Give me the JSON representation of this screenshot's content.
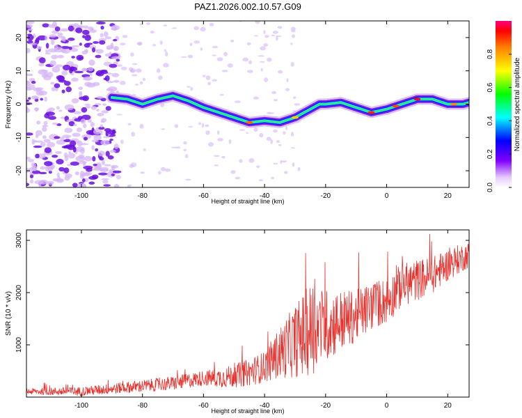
{
  "title": "PAZ1.2026.002.10.57.G09",
  "colors": {
    "snr_line": "#e8302c",
    "blob_dark": "#6a0fe0",
    "blob_light": "#d6b6f6",
    "frame": "#000000"
  },
  "chart_data": [
    {
      "type": "heatmap",
      "name": "spectrogram",
      "xlabel": "Height of straight line (km)",
      "ylabel": "Frequency (Hz)",
      "xlim": [
        -118,
        27
      ],
      "ylim": [
        -25,
        25
      ],
      "x_ticks": [
        -100,
        -80,
        -60,
        -40,
        -20,
        0,
        20
      ],
      "y_ticks": [
        -20,
        -10,
        0,
        10,
        20
      ],
      "ridge": {
        "x": [
          -90,
          -85,
          -80,
          -75,
          -70,
          -65,
          -60,
          -55,
          -50,
          -45,
          -40,
          -35,
          -30,
          -27,
          -24,
          -22,
          -20,
          -15,
          -10,
          -5,
          0,
          5,
          10,
          15,
          20,
          25,
          27
        ],
        "y": [
          2,
          1.5,
          0,
          1.5,
          2.5,
          1,
          -1,
          -2.5,
          -4,
          -5.5,
          -5,
          -5.5,
          -4,
          -2.5,
          -1,
          0,
          0,
          0.5,
          -1,
          -2.5,
          -1.5,
          0,
          1.5,
          1.5,
          0,
          0,
          0.5
        ]
      },
      "colorbar": {
        "label": "Normalized spectral amplitude",
        "range": [
          0,
          1
        ],
        "ticks": [
          "0.0",
          "0.2",
          "0.4",
          "0.6",
          "0.8"
        ],
        "tick_values": [
          0,
          0.2,
          0.4,
          0.6,
          0.8
        ]
      }
    },
    {
      "type": "line",
      "name": "snr",
      "xlabel": "Height of straight line (km)",
      "ylabel": "SNR (10 * v/v)",
      "xlim": [
        -118,
        27
      ],
      "ylim": [
        0,
        3200
      ],
      "x_ticks": [
        -100,
        -80,
        -60,
        -40,
        -20,
        0,
        20
      ],
      "y_ticks": [
        1000,
        2000,
        3000
      ],
      "trend": {
        "x": [
          -118,
          -100,
          -90,
          -80,
          -70,
          -60,
          -55,
          -50,
          -45,
          -40,
          -35,
          -30,
          -25,
          -20,
          -15,
          -10,
          -5,
          0,
          5,
          10,
          15,
          20,
          25,
          27
        ],
        "y": [
          100,
          100,
          150,
          200,
          250,
          350,
          350,
          380,
          450,
          550,
          800,
          1000,
          1200,
          1300,
          1400,
          1500,
          1700,
          1800,
          2100,
          2200,
          2300,
          2500,
          2650,
          2700
        ]
      },
      "noise_amplitude": {
        "x": [
          -118,
          -60,
          -40,
          -30,
          -25,
          -20,
          -10,
          0,
          10,
          27
        ],
        "y": [
          60,
          150,
          300,
          700,
          900,
          700,
          500,
          450,
          400,
          250
        ]
      },
      "max_value": 3200
    }
  ]
}
